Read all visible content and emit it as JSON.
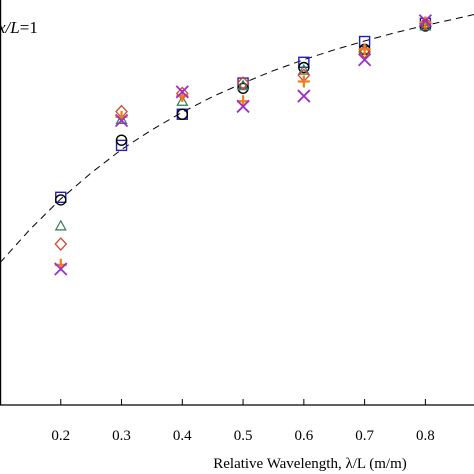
{
  "chart_data": {
    "type": "scatter",
    "title": "",
    "annotation": {
      "var": "x/L",
      "eq": "=1"
    },
    "xlabel": "Relative Wavelength, λ/L (m/m)",
    "ylabel": "",
    "xlim": [
      0.1,
      0.88
    ],
    "ylim": [
      0.22,
      1.0
    ],
    "x_ticks": [
      0.2,
      0.3,
      0.4,
      0.5,
      0.6,
      0.7,
      0.8
    ],
    "x_tick_labels": [
      "0.2",
      "0.3",
      "0.4",
      "0.5",
      "0.6",
      "0.7",
      "0.8"
    ],
    "grid": false,
    "colors": {
      "squares": "#1f1fb8",
      "circles": "#000000",
      "triangles": "#2e7d4f",
      "diamonds": "#d2462a",
      "plus": "#f07d1a",
      "crosses": "#9b2fc9",
      "fit_curve": "#000000"
    },
    "series": [
      {
        "marker": "square",
        "x": [
          0.2,
          0.3,
          0.4,
          0.5,
          0.6,
          0.7,
          0.8
        ],
        "y": [
          0.62,
          0.72,
          0.78,
          0.84,
          0.88,
          0.92,
          0.955
        ]
      },
      {
        "marker": "circle",
        "x": [
          0.2,
          0.3,
          0.4,
          0.5,
          0.6,
          0.7,
          0.8
        ],
        "y": [
          0.615,
          0.73,
          0.78,
          0.83,
          0.87,
          0.905,
          0.95
        ]
      },
      {
        "marker": "triangle",
        "x": [
          0.2,
          0.3,
          0.4,
          0.5,
          0.6,
          0.7,
          0.8
        ],
        "y": [
          0.565,
          0.77,
          0.805,
          0.835,
          0.865,
          0.905,
          0.95
        ]
      },
      {
        "marker": "diamond",
        "x": [
          0.2,
          0.3,
          0.4,
          0.5,
          0.6,
          0.7,
          0.8
        ],
        "y": [
          0.53,
          0.785,
          0.82,
          0.84,
          0.855,
          0.9,
          0.955
        ]
      },
      {
        "marker": "plus",
        "x": [
          0.2,
          0.3,
          0.4,
          0.5,
          0.6,
          0.7,
          0.8
        ],
        "y": [
          0.49,
          0.775,
          0.815,
          0.805,
          0.843,
          0.905,
          0.957
        ]
      },
      {
        "marker": "cross",
        "x": [
          0.2,
          0.3,
          0.4,
          0.5,
          0.6,
          0.7,
          0.8
        ],
        "y": [
          0.482,
          0.768,
          0.823,
          0.795,
          0.815,
          0.885,
          0.96
        ]
      }
    ],
    "fit_curve": {
      "style": "dashed",
      "x": [
        0.1,
        0.15,
        0.2,
        0.25,
        0.3,
        0.35,
        0.4,
        0.45,
        0.5,
        0.55,
        0.6,
        0.65,
        0.7,
        0.75,
        0.8,
        0.85,
        0.88
      ],
      "y": [
        0.494,
        0.559,
        0.617,
        0.667,
        0.712,
        0.75,
        0.784,
        0.814,
        0.84,
        0.864,
        0.885,
        0.904,
        0.921,
        0.937,
        0.951,
        0.964,
        0.972
      ]
    }
  }
}
